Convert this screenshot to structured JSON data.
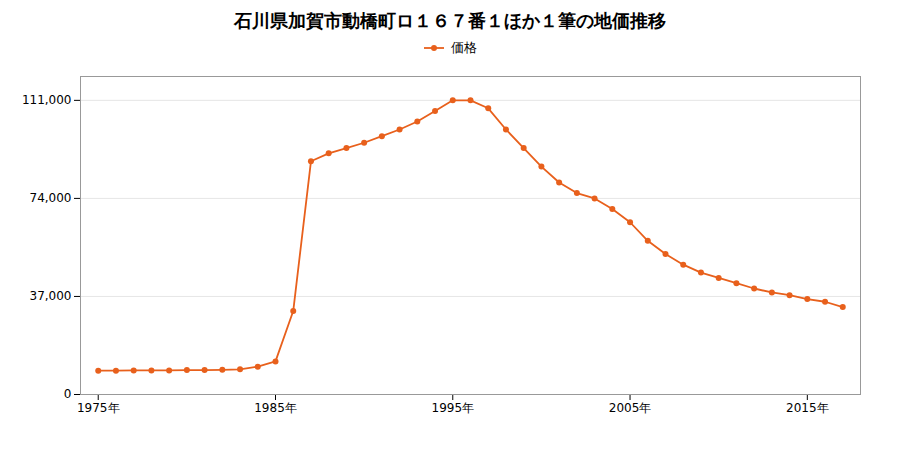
{
  "chart_data": {
    "type": "line",
    "title": "石川県加賀市動橋町ロ１６７番１ほか１筆の地価推移",
    "x": [
      1975,
      1976,
      1977,
      1978,
      1979,
      1980,
      1981,
      1982,
      1983,
      1984,
      1985,
      1986,
      1987,
      1988,
      1989,
      1990,
      1991,
      1992,
      1993,
      1994,
      1995,
      1996,
      1997,
      1998,
      1999,
      2000,
      2001,
      2002,
      2003,
      2004,
      2005,
      2006,
      2007,
      2008,
      2009,
      2010,
      2011,
      2012,
      2013,
      2014,
      2015,
      2016,
      2017
    ],
    "series": [
      {
        "name": "価格",
        "color": "#e8601c",
        "marker": "circle",
        "values": [
          9000,
          9000,
          9100,
          9100,
          9100,
          9200,
          9200,
          9300,
          9500,
          10500,
          12500,
          31500,
          88000,
          91000,
          93000,
          95000,
          97500,
          100000,
          103000,
          107000,
          111000,
          111000,
          108000,
          100000,
          93000,
          86000,
          80000,
          76000,
          74000,
          70000,
          65000,
          58000,
          53000,
          49000,
          46000,
          44000,
          42000,
          40000,
          38500,
          37500,
          36000,
          35000,
          33000
        ]
      }
    ],
    "xlim": [
      1974,
      2018
    ],
    "xticks": [
      {
        "value": 1975,
        "label": "1975年"
      },
      {
        "value": 1985,
        "label": "1985年"
      },
      {
        "value": 1995,
        "label": "1995年"
      },
      {
        "value": 2005,
        "label": "2005年"
      },
      {
        "value": 2015,
        "label": "2015年"
      }
    ],
    "ylim": [
      0,
      120000
    ],
    "yticks": [
      0,
      {
        "value": 37000,
        "label": "37,000"
      },
      {
        "value": 74000,
        "label": "74,000"
      },
      {
        "value": 111000,
        "label": "111,000"
      }
    ],
    "grid": "y",
    "legend": "top"
  }
}
